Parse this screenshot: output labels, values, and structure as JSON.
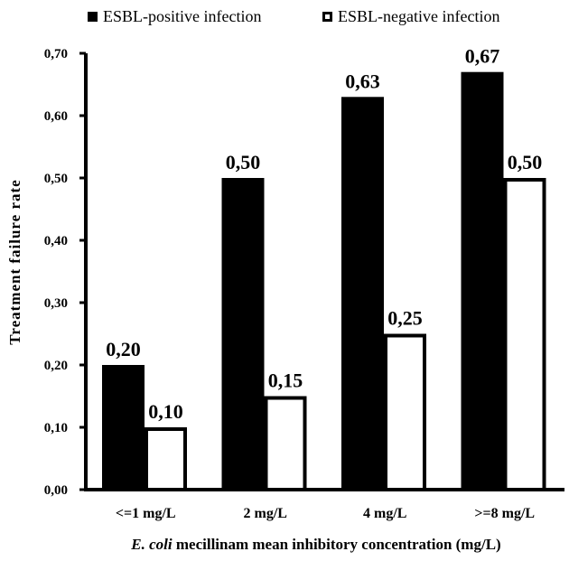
{
  "chart_data": {
    "type": "bar",
    "categories": [
      "<=1 mg/L",
      "2 mg/L",
      "4 mg/L",
      ">=8 mg/L"
    ],
    "series": [
      {
        "name": "ESBL-positive infection",
        "values": [
          0.2,
          0.5,
          0.63,
          0.67
        ],
        "labels": [
          "0,20",
          "0,50",
          "0,63",
          "0,67"
        ],
        "color": "#000000"
      },
      {
        "name": "ESBL-negative infection",
        "values": [
          0.1,
          0.15,
          0.25,
          0.5
        ],
        "labels": [
          "0,10",
          "0,15",
          "0,25",
          "0,50"
        ],
        "color": "#ffffff"
      }
    ],
    "ylim": [
      0,
      0.7
    ],
    "yticks": [
      0,
      0.1,
      0.2,
      0.3,
      0.4,
      0.5,
      0.6,
      0.7
    ],
    "ytick_labels": [
      "0,00",
      "0,10",
      "0,20",
      "0,30",
      "0,40",
      "0,50",
      "0,60",
      "0,70"
    ],
    "ylabel": "Treatment failure rate",
    "xlabel_italic": "E. coli",
    "xlabel_rest": " mecillinam mean inhibitory concentration (mg/L)",
    "grid": false,
    "legend_position": "top"
  }
}
